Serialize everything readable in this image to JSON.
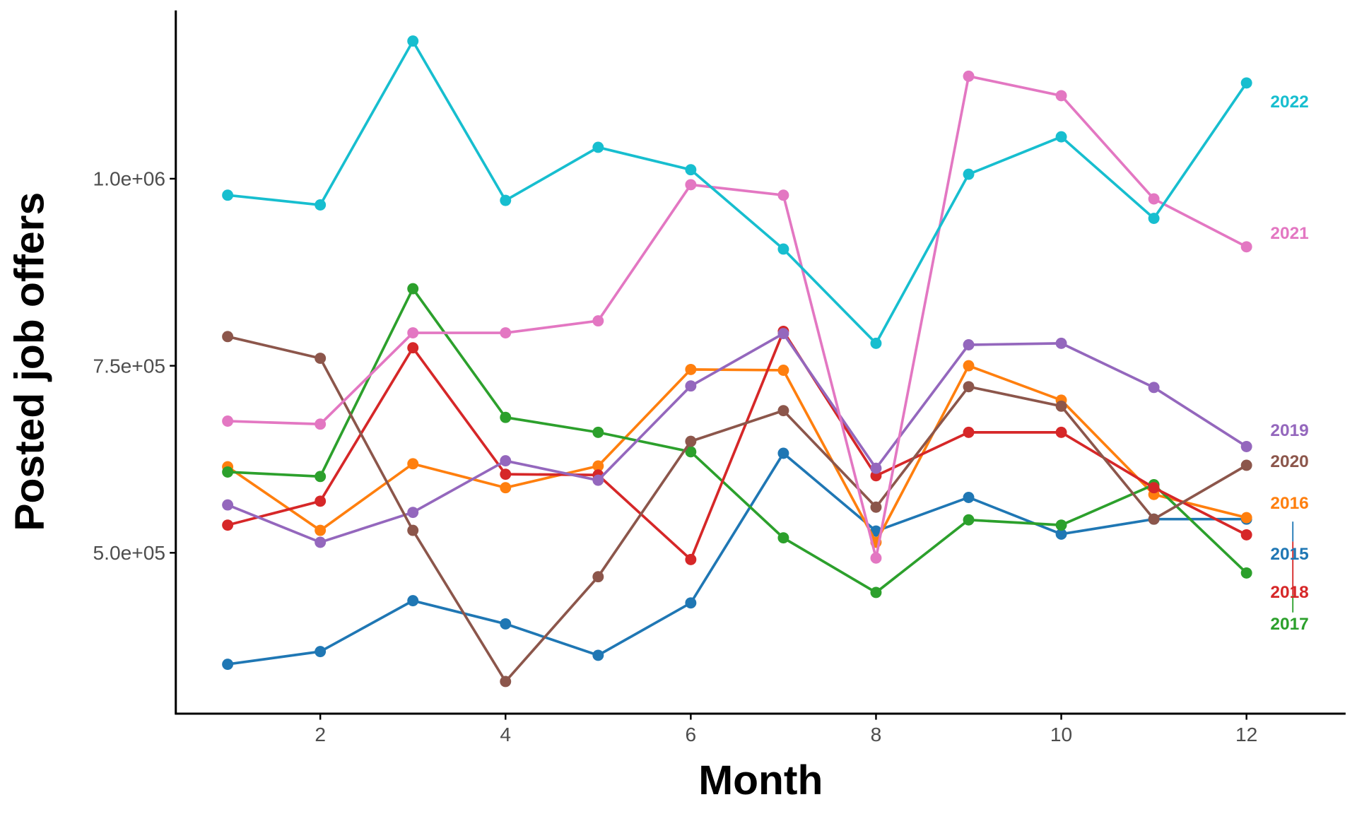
{
  "chart_data": {
    "type": "line",
    "title": "",
    "xlabel": "Month",
    "ylabel": "Posted job offers",
    "xlim": [
      0.44,
      13.07
    ],
    "ylim": [
      285000,
      1225000
    ],
    "x_ticks": [
      2,
      4,
      6,
      8,
      10,
      12
    ],
    "x_tick_labels": [
      "2",
      "4",
      "6",
      "8",
      "10",
      "12"
    ],
    "y_ticks": [
      500000,
      750000,
      1000000
    ],
    "y_tick_labels": [
      "5.0e+05",
      "7.5e+05",
      "1.0e+06"
    ],
    "grid": false,
    "legend": "direct labels at right end of lines",
    "x": [
      1,
      2,
      3,
      4,
      5,
      6,
      7,
      8,
      9,
      10,
      11,
      12
    ],
    "series": [
      {
        "name": "2015",
        "color": "#1f77b4",
        "values": [
          351000,
          368000,
          436000,
          405000,
          363000,
          433000,
          633000,
          529000,
          574000,
          525000,
          545000,
          545000
        ]
      },
      {
        "name": "2016",
        "color": "#ff7f0e",
        "values": [
          615000,
          530000,
          619000,
          587000,
          616000,
          745000,
          744000,
          514000,
          750000,
          704000,
          578000,
          547000
        ]
      },
      {
        "name": "2017",
        "color": "#2ca02c",
        "values": [
          608000,
          602000,
          853000,
          681000,
          661000,
          635000,
          520000,
          447000,
          544000,
          537000,
          591000,
          473000
        ]
      },
      {
        "name": "2018",
        "color": "#d62728",
        "values": [
          537000,
          569000,
          774000,
          605000,
          604000,
          491000,
          796000,
          603000,
          661000,
          661000,
          587000,
          524000
        ]
      },
      {
        "name": "2019",
        "color": "#9467bd",
        "values": [
          564000,
          514000,
          554000,
          623000,
          597000,
          723000,
          793000,
          613000,
          778000,
          780000,
          721000,
          642000
        ]
      },
      {
        "name": "2020",
        "color": "#8c564b",
        "values": [
          789000,
          760000,
          530000,
          328000,
          468000,
          649000,
          690000,
          561000,
          722000,
          696000,
          545000,
          617000
        ]
      },
      {
        "name": "2021",
        "color": "#e377c2",
        "values": [
          676000,
          672000,
          794000,
          794000,
          810000,
          992000,
          978000,
          493000,
          1137000,
          1111000,
          973000,
          909000
        ]
      },
      {
        "name": "2022",
        "color": "#17becf",
        "values": [
          978000,
          965000,
          1184000,
          971000,
          1042000,
          1012000,
          906000,
          780000,
          1006000,
          1056000,
          947000,
          1128000
        ]
      }
    ]
  }
}
